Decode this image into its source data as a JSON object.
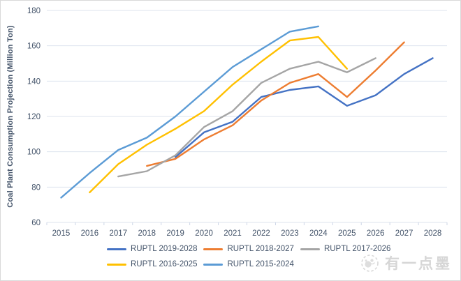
{
  "page": {
    "background": "#ffffff",
    "border_color": "#d9d9d9"
  },
  "chart_data": {
    "type": "line",
    "title": "",
    "xlabel": "",
    "ylabel": "Coal Plant Consumption Projection (Million Ton)",
    "categories": [
      "2015",
      "2016",
      "2017",
      "2018",
      "2019",
      "2020",
      "2021",
      "2022",
      "2023",
      "2024",
      "2025",
      "2026",
      "2027",
      "2028"
    ],
    "ylim": [
      60,
      180
    ],
    "ytick_step": 20,
    "grid": true,
    "legend_position": "bottom",
    "axis_text_color": "#44546A",
    "gridline_color": "#dce3ee",
    "tick_mark_color": "#ccd5e6",
    "series": [
      {
        "name": "RUPTL 2019-2028",
        "color": "#4472C4",
        "values": [
          null,
          null,
          null,
          null,
          97,
          111,
          117,
          131,
          135,
          137,
          126,
          132,
          144,
          153
        ]
      },
      {
        "name": "RUPTL 2018-2027",
        "color": "#ED7D31",
        "values": [
          null,
          null,
          null,
          92,
          96,
          107,
          115,
          129,
          139,
          144,
          131,
          146,
          162,
          null
        ]
      },
      {
        "name": "RUPTL 2017-2026",
        "color": "#A5A5A5",
        "values": [
          null,
          null,
          86,
          89,
          98,
          114,
          123,
          139,
          147,
          151,
          145,
          153,
          null,
          null
        ]
      },
      {
        "name": "RUPTL 2016-2025",
        "color": "#FFC000",
        "values": [
          null,
          77,
          93,
          104,
          113,
          123,
          138,
          151,
          163,
          165,
          147,
          null,
          null,
          null
        ]
      },
      {
        "name": "RUPTL 2015-2024",
        "color": "#5B9BD5",
        "values": [
          74,
          88,
          101,
          108,
          120,
          134,
          148,
          158,
          168,
          171,
          null,
          null,
          null,
          null
        ]
      }
    ]
  },
  "watermark": {
    "text": "有一点墨",
    "logo": "ink-panda-logo",
    "color": "#d6d6d6"
  }
}
